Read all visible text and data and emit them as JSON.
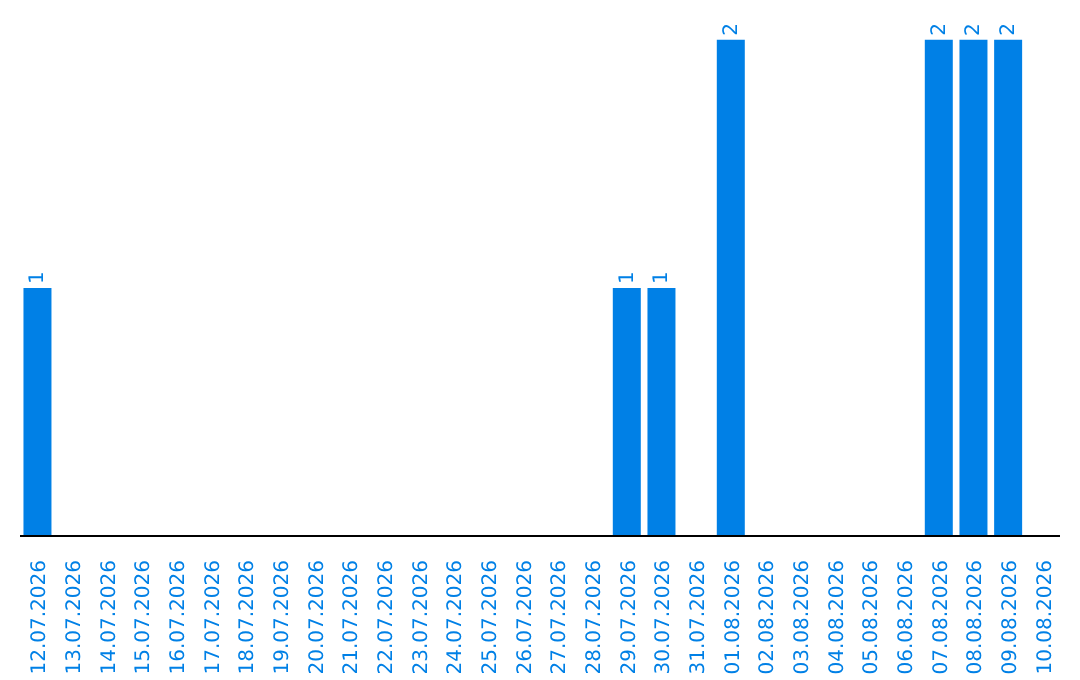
{
  "chart_data": {
    "type": "bar",
    "categories": [
      "12.07.2026",
      "13.07.2026",
      "14.07.2026",
      "15.07.2026",
      "16.07.2026",
      "17.07.2026",
      "18.07.2026",
      "19.07.2026",
      "20.07.2026",
      "21.07.2026",
      "22.07.2026",
      "23.07.2026",
      "24.07.2026",
      "25.07.2026",
      "26.07.2026",
      "27.07.2026",
      "28.07.2026",
      "29.07.2026",
      "30.07.2026",
      "31.07.2026",
      "01.08.2026",
      "02.08.2026",
      "03.08.2026",
      "04.08.2026",
      "05.08.2026",
      "06.08.2026",
      "07.08.2026",
      "08.08.2026",
      "09.08.2026",
      "10.08.2026"
    ],
    "values": [
      1,
      0,
      0,
      0,
      0,
      0,
      0,
      0,
      0,
      0,
      0,
      0,
      0,
      0,
      0,
      0,
      0,
      1,
      1,
      0,
      2,
      0,
      0,
      0,
      0,
      0,
      2,
      2,
      2,
      0
    ],
    "value_labels": [
      "1",
      null,
      null,
      null,
      null,
      null,
      null,
      null,
      null,
      null,
      null,
      null,
      null,
      null,
      null,
      null,
      null,
      "1",
      "1",
      null,
      "2",
      null,
      null,
      null,
      null,
      null,
      "2",
      "2",
      "2",
      null
    ],
    "color": "#0080e6",
    "grid": false,
    "legend": false
  }
}
